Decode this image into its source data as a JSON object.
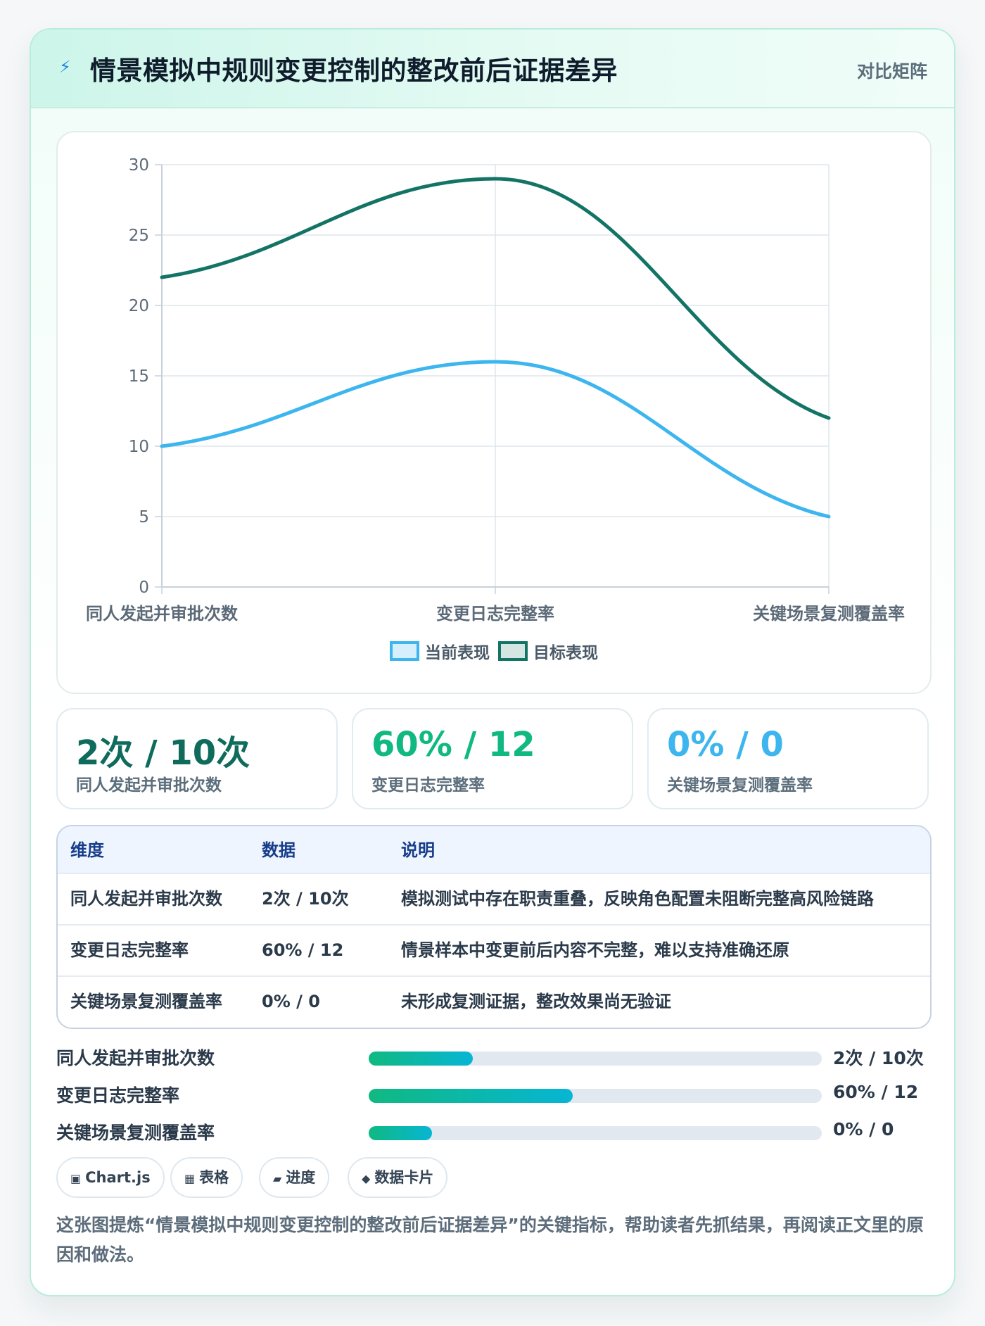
{
  "header": {
    "title": "情景模拟中规则变更控制的整改前后证据差异",
    "tag": "对比矩阵"
  },
  "chart_data": {
    "type": "line",
    "categories": [
      "同人发起并审批次数",
      "变更日志完整率",
      "关键场景复测覆盖率"
    ],
    "series": [
      {
        "name": "当前表现",
        "values": [
          10,
          16,
          5
        ],
        "color": "#3db5ee"
      },
      {
        "name": "目标表现",
        "values": [
          22,
          29,
          12
        ],
        "color": "#137466"
      }
    ],
    "ylim": [
      0,
      30
    ],
    "yticks": [
      0,
      5,
      10,
      15,
      20,
      25,
      30
    ],
    "grid": true,
    "legend": "bottom"
  },
  "kpis": [
    {
      "value": "2次 / 10次",
      "label": "同人发起并审批次数",
      "color": "#0f6b5c"
    },
    {
      "value": "60% / 12",
      "label": "变更日志完整率",
      "color": "#10b981"
    },
    {
      "value": "0% / 0",
      "label": "关键场景复测覆盖率",
      "color": "#3db5ee"
    }
  ],
  "table": {
    "headers": [
      "维度",
      "数据",
      "说明"
    ],
    "rows": [
      [
        "同人发起并审批次数",
        "2次 / 10次",
        "模拟测试中存在职责重叠，反映角色配置未阻断完整高风险链路"
      ],
      [
        "变更日志完整率",
        "60% / 12",
        "情景样本中变更前后内容不完整，难以支持准确还原"
      ],
      [
        "关键场景复测覆盖率",
        "0% / 0",
        "未形成复测证据，整改效果尚无验证"
      ]
    ]
  },
  "progress": [
    {
      "label": "同人发起并审批次数",
      "value": "2次 / 10次",
      "fill": 0.23
    },
    {
      "label": "变更日志完整率",
      "value": "60% / 12",
      "fill": 0.45
    },
    {
      "label": "关键场景复测覆盖率",
      "value": "0% / 0",
      "fill": 0.14
    }
  ],
  "chips": [
    {
      "icon": "chart-icon",
      "glyph": "▣",
      "label": "Chart.js"
    },
    {
      "icon": "table-icon",
      "glyph": "▦",
      "label": "表格"
    },
    {
      "icon": "progress-icon",
      "glyph": "▰",
      "label": "进度"
    },
    {
      "icon": "card-icon",
      "glyph": "◆",
      "label": "数据卡片"
    }
  ],
  "note": "这张图提炼“情景模拟中规则变更控制的整改前后证据差异”的关键指标，帮助读者先抓结果，再阅读正文里的原因和做法。"
}
